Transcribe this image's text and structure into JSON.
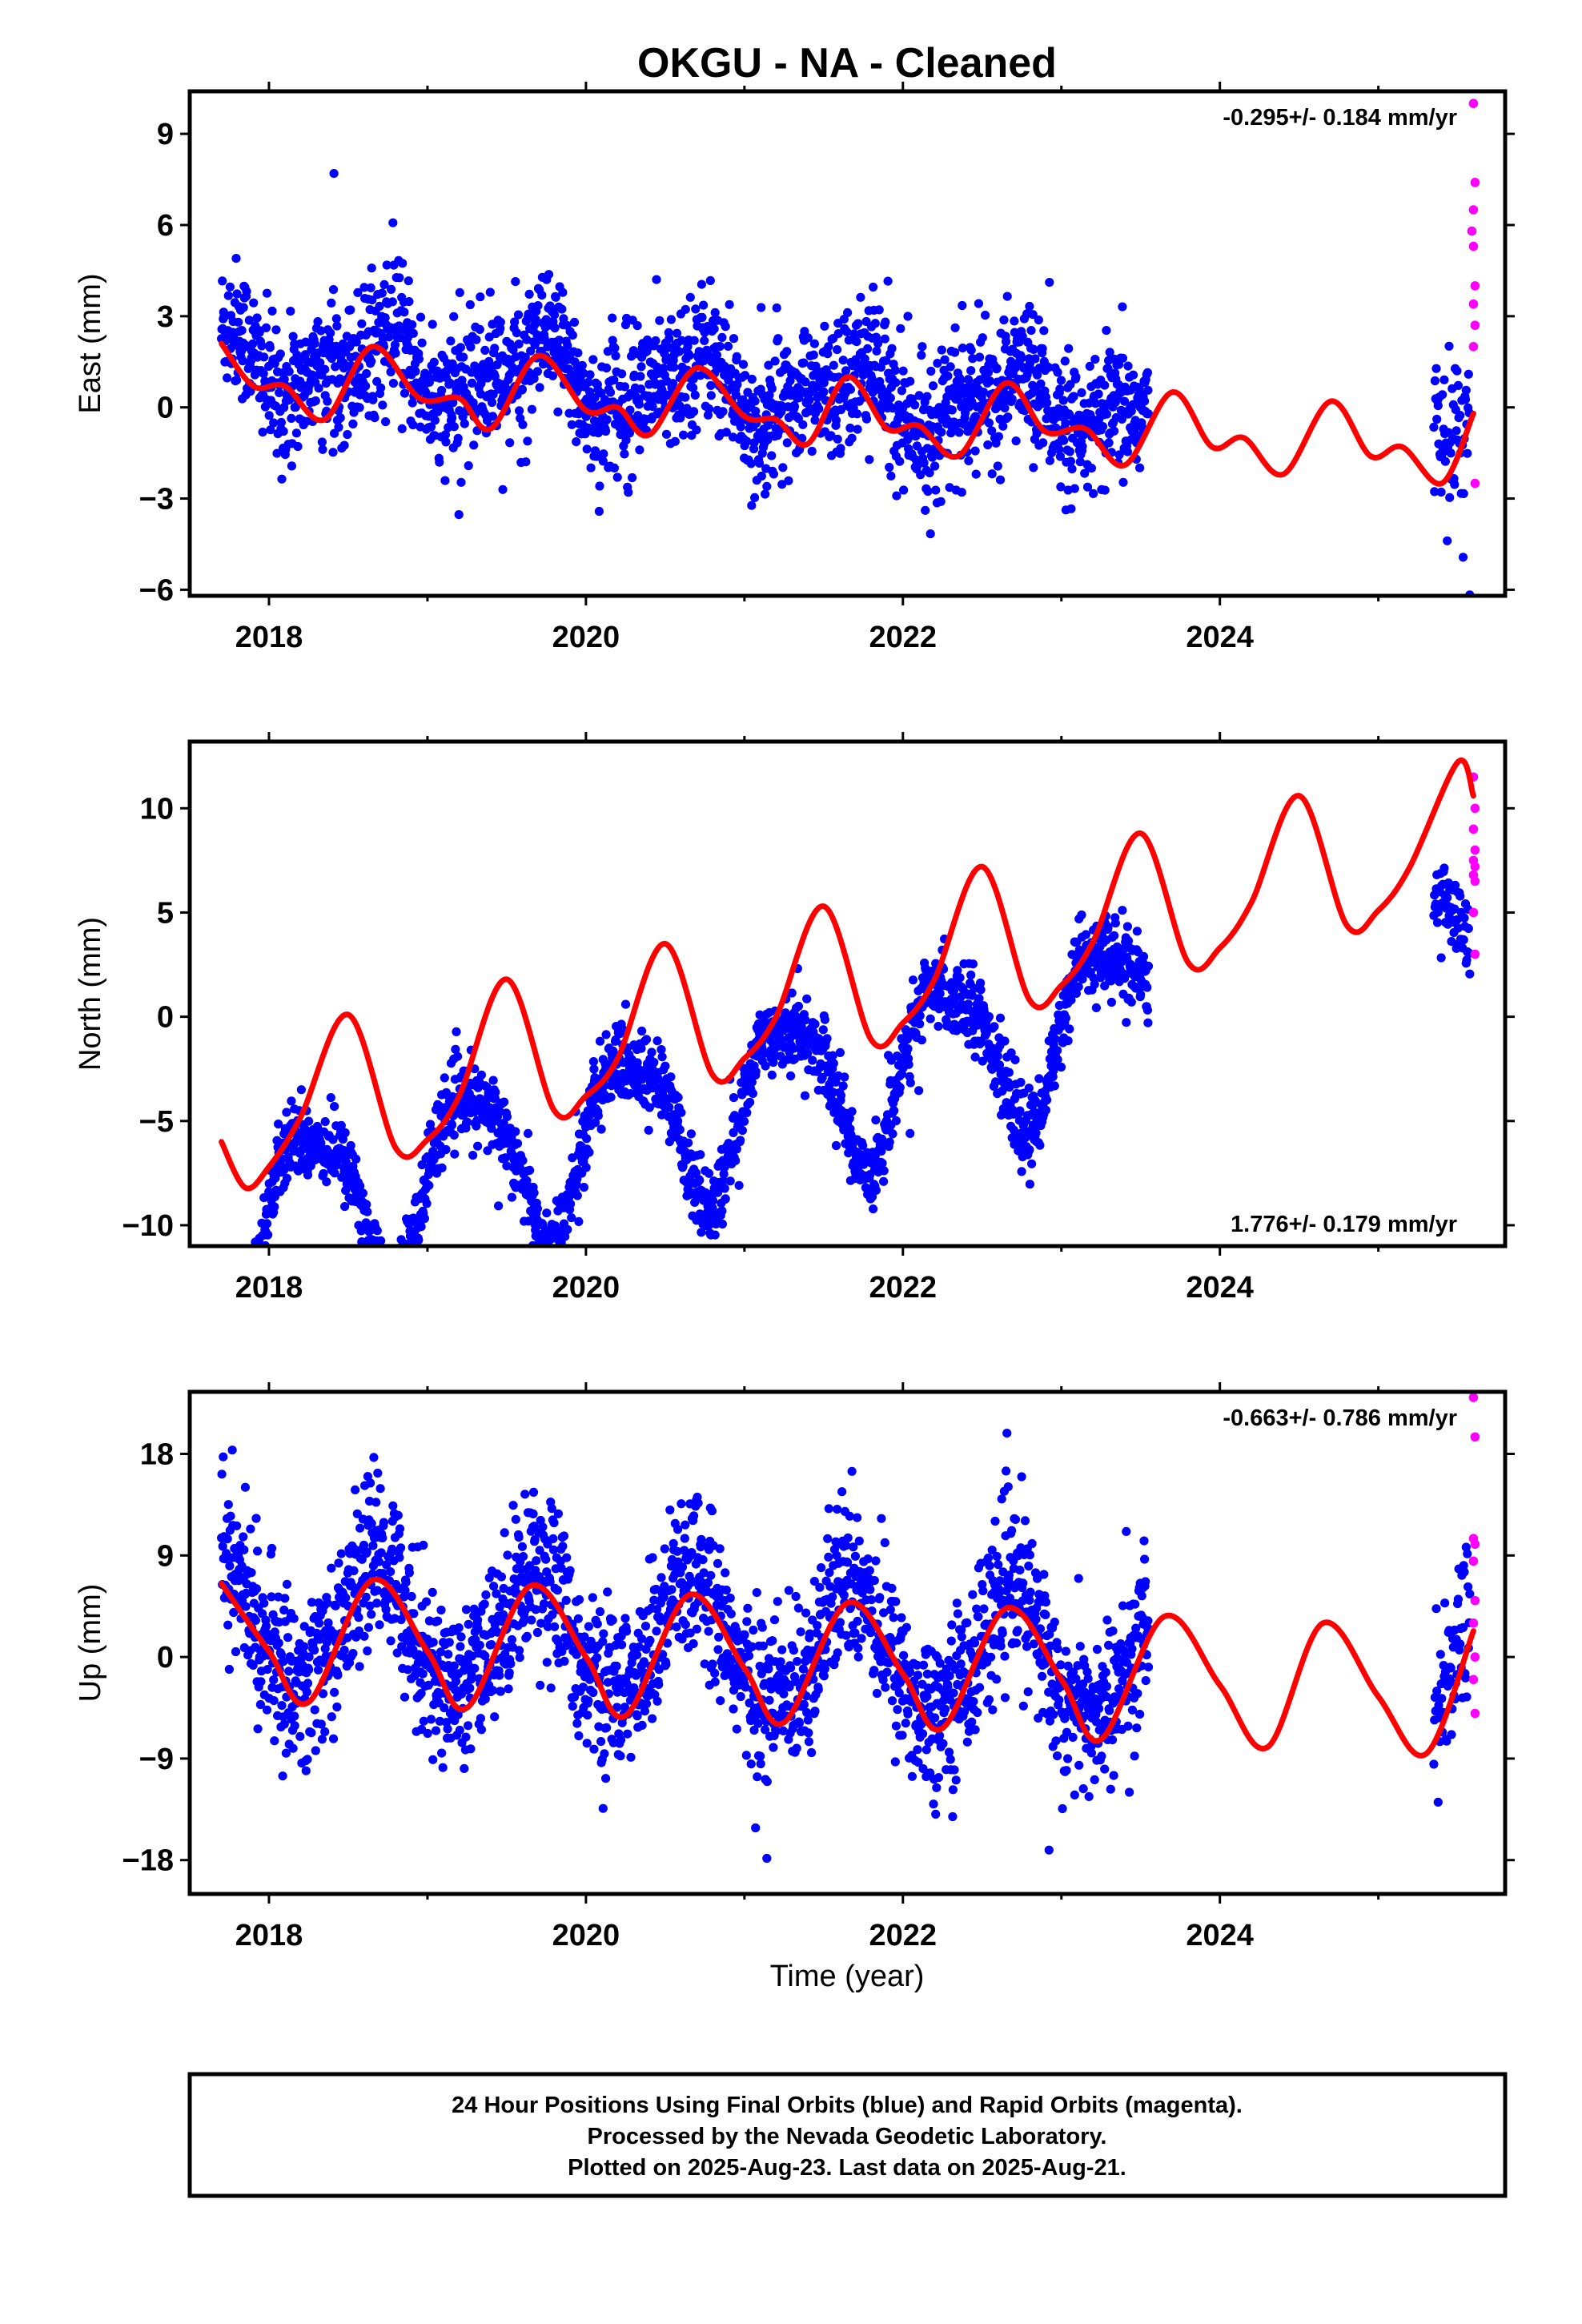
{
  "title": "OKGU  - NA - Cleaned",
  "xlabel": "Time (year)",
  "colors": {
    "final": "#0000ff",
    "rapid": "#ff00ff",
    "model": "#ff0000",
    "frame": "#000000"
  },
  "footer": {
    "line1": "24 Hour Positions Using Final Orbits (blue) and Rapid Orbits (magenta).",
    "line2": "Processed by the Nevada Geodetic Laboratory.",
    "line3": "Plotted on 2025-Aug-23. Last data on 2025-Aug-21."
  },
  "chart_data": [
    {
      "type": "scatter",
      "ylabel": "East (mm)",
      "rate_label": "-0.295+/- 0.184 mm/yr",
      "rate_position": "top-right",
      "xlim": [
        2017.5,
        2025.8
      ],
      "ylim": [
        -6.2,
        10.4
      ],
      "yticks": [
        -6,
        -3,
        0,
        3,
        6,
        9
      ],
      "xticks": [
        2018,
        2020,
        2022,
        2024
      ],
      "grid": false,
      "final_orbits": {
        "range": [
          2017.7,
          2023.55
        ],
        "gap": [
          2023.55,
          2025.35
        ],
        "resume": [
          2025.35,
          2025.58
        ],
        "scatter_sd": 1.1
      },
      "rapid_orbits_points": [
        [
          2025.6,
          10.0
        ],
        [
          2025.61,
          7.4
        ],
        [
          2025.6,
          6.5
        ],
        [
          2025.59,
          5.8
        ],
        [
          2025.6,
          5.3
        ],
        [
          2025.61,
          4.0
        ],
        [
          2025.6,
          3.4
        ],
        [
          2025.61,
          2.7
        ],
        [
          2025.6,
          2.0
        ],
        [
          2025.61,
          -2.5
        ]
      ],
      "model": {
        "trend": -0.295,
        "offset": 0.45,
        "annual_amp": 0.9,
        "annual_phase": 0.68,
        "semiannual_amp": 0.45,
        "semiannual_phase": 0.3
      },
      "model_points": [
        [
          2017.7,
          2.1
        ],
        [
          2017.9,
          0.7
        ],
        [
          2018.1,
          0.7
        ],
        [
          2018.35,
          -0.4
        ],
        [
          2018.65,
          2.0
        ],
        [
          2018.95,
          0.3
        ],
        [
          2019.2,
          0.3
        ],
        [
          2019.4,
          -0.7
        ],
        [
          2019.7,
          1.7
        ],
        [
          2020.0,
          -0.1
        ],
        [
          2020.2,
          0.0
        ],
        [
          2020.4,
          -0.9
        ],
        [
          2020.7,
          1.3
        ],
        [
          2021.0,
          -0.3
        ],
        [
          2021.2,
          -0.4
        ],
        [
          2021.4,
          -1.2
        ],
        [
          2021.65,
          1.0
        ],
        [
          2021.9,
          -0.7
        ],
        [
          2022.1,
          -0.6
        ],
        [
          2022.35,
          -1.6
        ],
        [
          2022.65,
          0.8
        ],
        [
          2022.9,
          -0.8
        ],
        [
          2023.15,
          -0.7
        ],
        [
          2023.4,
          -1.9
        ],
        [
          2023.7,
          0.5
        ],
        [
          2023.95,
          -1.3
        ],
        [
          2024.15,
          -1.0
        ],
        [
          2024.4,
          -2.2
        ],
        [
          2024.7,
          0.2
        ],
        [
          2024.95,
          -1.6
        ],
        [
          2025.15,
          -1.3
        ],
        [
          2025.4,
          -2.5
        ],
        [
          2025.6,
          -0.2
        ]
      ]
    },
    {
      "type": "scatter",
      "ylabel": "North (mm)",
      "rate_label": "1.776+/- 0.179 mm/yr",
      "rate_position": "bottom-right",
      "xlim": [
        2017.5,
        2025.8
      ],
      "ylim": [
        -11.0,
        13.2
      ],
      "yticks": [
        -10,
        -5,
        0,
        5,
        10
      ],
      "xticks": [
        2018,
        2020,
        2022,
        2024
      ],
      "grid": false,
      "final_orbits": {
        "range": [
          2017.7,
          2023.55
        ],
        "gap": [
          2023.55,
          2025.35
        ],
        "resume": [
          2025.35,
          2025.58
        ],
        "scatter_sd": 0.9
      },
      "rapid_orbits_points": [
        [
          2025.6,
          11.5
        ],
        [
          2025.61,
          10.0
        ],
        [
          2025.6,
          9.0
        ],
        [
          2025.61,
          8.0
        ],
        [
          2025.6,
          7.5
        ],
        [
          2025.61,
          7.2
        ],
        [
          2025.6,
          6.8
        ],
        [
          2025.61,
          6.5
        ],
        [
          2025.6,
          5.0
        ],
        [
          2025.61,
          3.0
        ]
      ],
      "model": {
        "trend": 1.776,
        "offset": -3.2,
        "annual_amp": 3.8,
        "annual_phase": 0.27,
        "semiannual_amp": 0.9,
        "semiannual_phase": 0.05
      },
      "model_points": [
        [
          2017.7,
          -6.0
        ],
        [
          2017.85,
          -8.2
        ],
        [
          2018.0,
          -7.2
        ],
        [
          2018.2,
          -4.8
        ],
        [
          2018.5,
          0.1
        ],
        [
          2018.8,
          -6.3
        ],
        [
          2019.0,
          -5.9
        ],
        [
          2019.2,
          -3.8
        ],
        [
          2019.5,
          1.8
        ],
        [
          2019.8,
          -4.5
        ],
        [
          2020.0,
          -3.8
        ],
        [
          2020.2,
          -2.0
        ],
        [
          2020.5,
          3.5
        ],
        [
          2020.8,
          -2.8
        ],
        [
          2021.0,
          -2.0
        ],
        [
          2021.2,
          0.0
        ],
        [
          2021.5,
          5.3
        ],
        [
          2021.8,
          -1.1
        ],
        [
          2022.0,
          -0.3
        ],
        [
          2022.2,
          1.8
        ],
        [
          2022.5,
          7.2
        ],
        [
          2022.8,
          0.8
        ],
        [
          2023.0,
          1.5
        ],
        [
          2023.2,
          3.6
        ],
        [
          2023.5,
          8.8
        ],
        [
          2023.8,
          2.6
        ],
        [
          2024.0,
          3.3
        ],
        [
          2024.2,
          5.5
        ],
        [
          2024.5,
          10.6
        ],
        [
          2024.8,
          4.4
        ],
        [
          2025.0,
          5.1
        ],
        [
          2025.2,
          7.2
        ],
        [
          2025.5,
          12.2
        ],
        [
          2025.6,
          10.6
        ]
      ]
    },
    {
      "type": "scatter",
      "ylabel": "Up (mm)",
      "rate_label": "-0.663+/- 0.786 mm/yr",
      "rate_position": "top-right",
      "xlim": [
        2017.5,
        2025.8
      ],
      "ylim": [
        -21.0,
        23.5
      ],
      "yticks": [
        -18,
        -9,
        0,
        9,
        18
      ],
      "xticks": [
        2018,
        2020,
        2022,
        2024
      ],
      "grid": false,
      "final_orbits": {
        "range": [
          2017.7,
          2023.55
        ],
        "gap": [
          2023.55,
          2025.35
        ],
        "resume": [
          2025.35,
          2025.58
        ],
        "scatter_sd": 3.6
      },
      "rapid_orbits_points": [
        [
          2025.6,
          23.0
        ],
        [
          2025.61,
          19.5
        ],
        [
          2025.6,
          10.5
        ],
        [
          2025.61,
          10.0
        ],
        [
          2025.6,
          8.5
        ],
        [
          2025.61,
          5.0
        ],
        [
          2025.6,
          3.0
        ],
        [
          2025.61,
          0.0
        ],
        [
          2025.6,
          -2.0
        ],
        [
          2025.61,
          -5.0
        ]
      ],
      "model": {
        "trend": -0.663,
        "offset": 0.8,
        "annual_amp": 5.5,
        "annual_phase": 0.68,
        "semiannual_amp": 0.7,
        "semiannual_phase": 0.2
      },
      "model_points": [
        [
          2017.7,
          6.5
        ],
        [
          2018.0,
          0.5
        ],
        [
          2018.25,
          -4.0
        ],
        [
          2018.65,
          6.8
        ],
        [
          2019.0,
          0.5
        ],
        [
          2019.25,
          -4.5
        ],
        [
          2019.65,
          6.3
        ],
        [
          2020.0,
          0.0
        ],
        [
          2020.25,
          -5.2
        ],
        [
          2020.65,
          5.5
        ],
        [
          2021.0,
          -1.0
        ],
        [
          2021.25,
          -5.8
        ],
        [
          2021.65,
          4.8
        ],
        [
          2022.0,
          -1.5
        ],
        [
          2022.25,
          -6.3
        ],
        [
          2022.65,
          4.3
        ],
        [
          2023.0,
          -2.0
        ],
        [
          2023.25,
          -7.3
        ],
        [
          2023.65,
          3.6
        ],
        [
          2024.0,
          -2.5
        ],
        [
          2024.3,
          -8.0
        ],
        [
          2024.65,
          3.0
        ],
        [
          2025.0,
          -3.5
        ],
        [
          2025.3,
          -8.6
        ],
        [
          2025.6,
          2.3
        ]
      ]
    }
  ]
}
